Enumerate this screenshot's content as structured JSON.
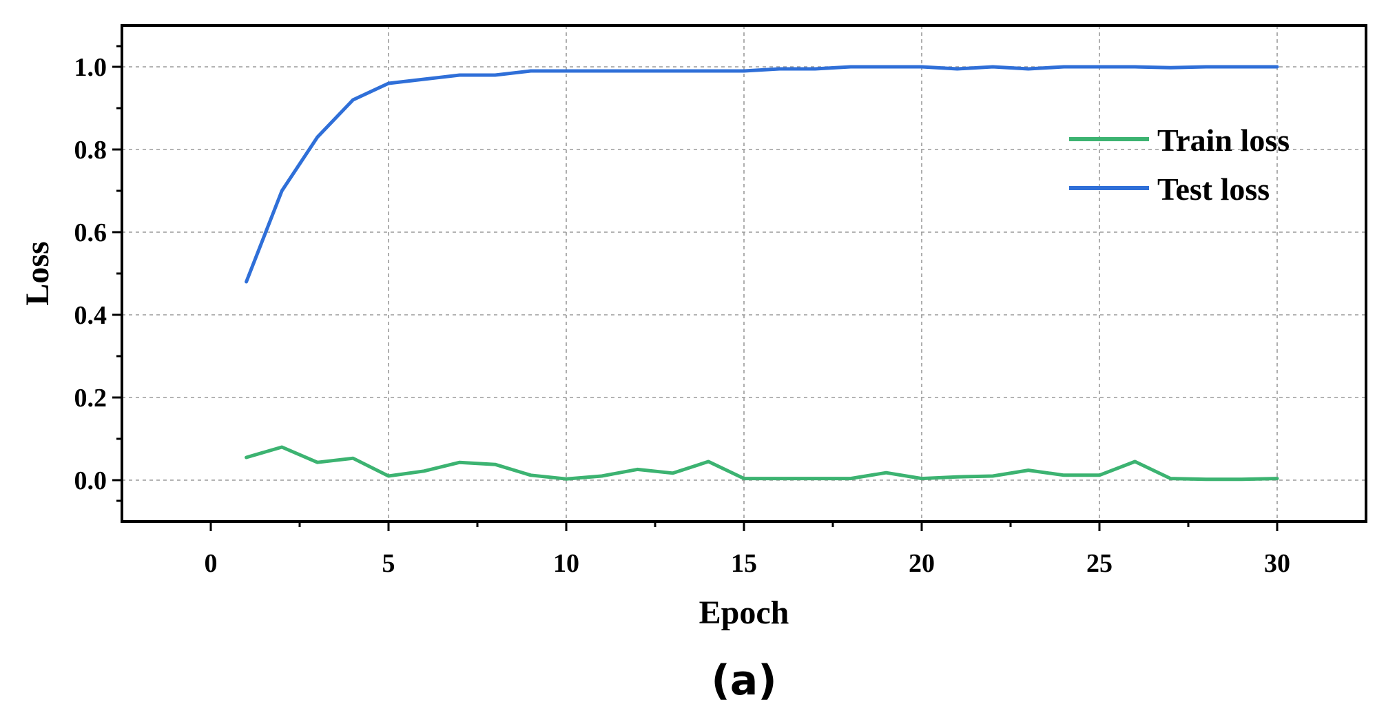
{
  "chart_data": {
    "type": "line",
    "xlabel": "Epoch",
    "ylabel": "Loss",
    "panel_label": "(a)",
    "xlim": [
      -2.5,
      32.5
    ],
    "ylim": [
      -0.1,
      1.1
    ],
    "xticks": [
      0,
      5,
      10,
      15,
      20,
      25,
      30
    ],
    "xtick_labels": [
      "0",
      "5",
      "10",
      "15",
      "20",
      "25",
      "30"
    ],
    "yticks": [
      0.0,
      0.2,
      0.4,
      0.6,
      0.8,
      1.0
    ],
    "ytick_labels": [
      "0.0",
      "0.2",
      "0.4",
      "0.6",
      "0.8",
      "1.0"
    ],
    "grid": true,
    "legend_position": "top-right",
    "x": [
      1,
      2,
      3,
      4,
      5,
      6,
      7,
      8,
      9,
      10,
      11,
      12,
      13,
      14,
      15,
      16,
      17,
      18,
      19,
      20,
      21,
      22,
      23,
      24,
      25,
      26,
      27,
      28,
      29,
      30
    ],
    "series": [
      {
        "name": "Train loss",
        "color": "#3cb371",
        "values": [
          0.055,
          0.08,
          0.043,
          0.053,
          0.01,
          0.022,
          0.043,
          0.038,
          0.012,
          0.003,
          0.01,
          0.026,
          0.017,
          0.045,
          0.004,
          0.004,
          0.004,
          0.004,
          0.018,
          0.004,
          0.008,
          0.01,
          0.024,
          0.012,
          0.012,
          0.045,
          0.004,
          0.002,
          0.002,
          0.004
        ]
      },
      {
        "name": "Test loss",
        "color": "#2f6fd8",
        "values": [
          0.48,
          0.7,
          0.83,
          0.92,
          0.96,
          0.97,
          0.98,
          0.98,
          0.99,
          0.99,
          0.99,
          0.99,
          0.99,
          0.99,
          0.99,
          0.995,
          0.995,
          1.0,
          1.0,
          1.0,
          0.995,
          1.0,
          0.995,
          1.0,
          1.0,
          1.0,
          0.998,
          1.0,
          1.0,
          1.0
        ]
      }
    ]
  }
}
